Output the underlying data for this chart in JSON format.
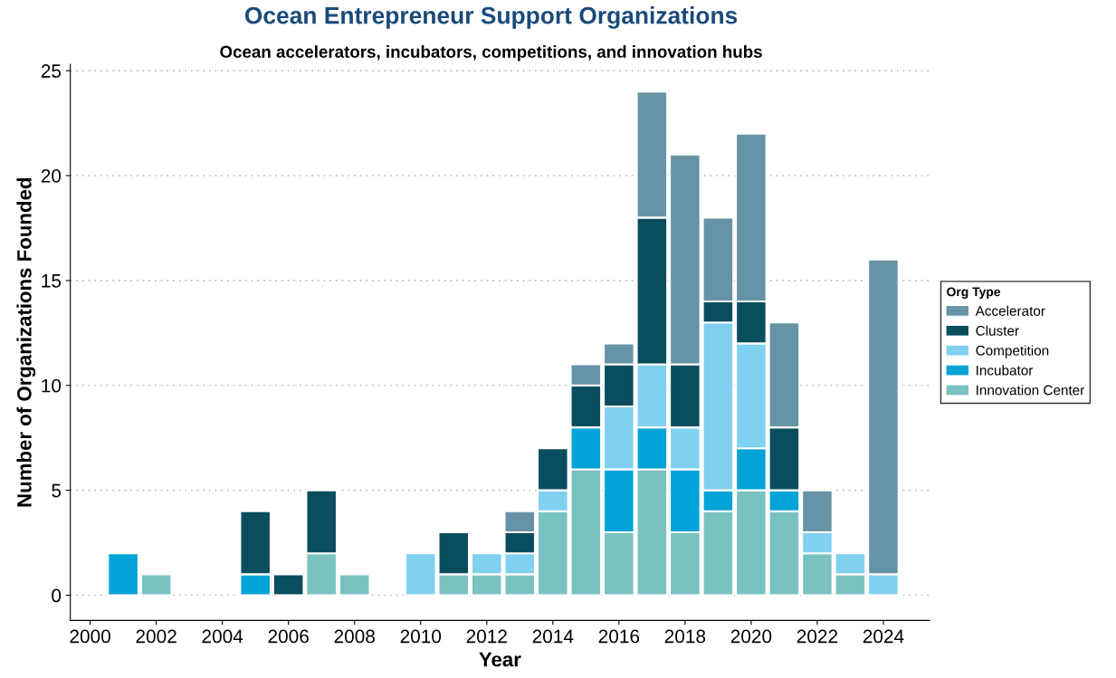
{
  "chart_data": {
    "type": "bar",
    "title": "Ocean Entrepreneur Support Organizations",
    "subtitle": "Ocean accelerators, incubators, competitions, and innovation hubs",
    "xlabel": "Year",
    "ylabel": "Number of Organizations Founded",
    "legend_title": "Org Type",
    "x": [
      2001,
      2002,
      2005,
      2006,
      2007,
      2008,
      2010,
      2011,
      2012,
      2013,
      2014,
      2015,
      2016,
      2017,
      2018,
      2019,
      2020,
      2021,
      2022,
      2023,
      2024
    ],
    "stacked": true,
    "series": [
      {
        "name": "Innovation Center",
        "color": "#7ac2c2",
        "values": [
          null,
          1,
          null,
          null,
          2,
          1,
          null,
          1,
          1,
          1,
          4,
          6,
          3,
          6,
          3,
          4,
          5,
          4,
          2,
          1,
          null
        ]
      },
      {
        "name": "Incubator",
        "color": "#00a3d6",
        "values": [
          2,
          null,
          1,
          null,
          null,
          null,
          null,
          null,
          null,
          null,
          null,
          2,
          3,
          2,
          3,
          1,
          2,
          1,
          null,
          null,
          null
        ]
      },
      {
        "name": "Competition",
        "color": "#80d0f0",
        "values": [
          null,
          null,
          null,
          null,
          null,
          null,
          2,
          null,
          1,
          1,
          1,
          null,
          3,
          3,
          2,
          8,
          5,
          null,
          1,
          1,
          1
        ]
      },
      {
        "name": "Cluster",
        "color": "#0a4d5f",
        "values": [
          null,
          null,
          3,
          1,
          3,
          null,
          null,
          2,
          null,
          1,
          2,
          2,
          2,
          7,
          3,
          1,
          2,
          3,
          null,
          null,
          null
        ]
      },
      {
        "name": "Accelerator",
        "color": "#6694a6",
        "values": [
          null,
          null,
          null,
          null,
          null,
          null,
          null,
          null,
          null,
          1,
          null,
          1,
          1,
          6,
          10,
          4,
          8,
          5,
          2,
          null,
          15
        ]
      }
    ],
    "xlim": [
      1999.4,
      2025.4
    ],
    "xticks": [
      2000,
      2002,
      2004,
      2006,
      2008,
      2010,
      2012,
      2014,
      2016,
      2018,
      2020,
      2022,
      2024
    ],
    "ylim": [
      -1.2,
      25.3
    ],
    "yticks": [
      0,
      5,
      10,
      15,
      20,
      25
    ],
    "grid": "y",
    "legend": "right"
  }
}
